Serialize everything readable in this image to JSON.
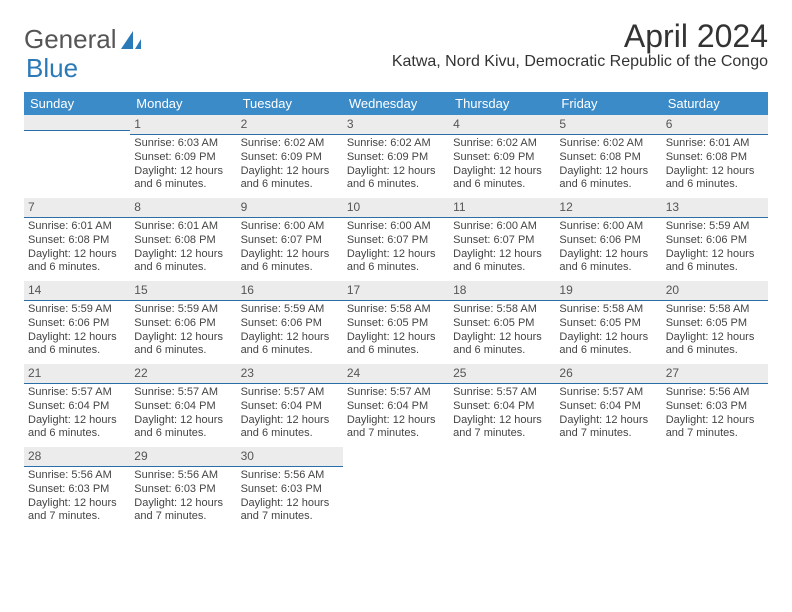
{
  "brand": {
    "part1": "General",
    "part2": "Blue"
  },
  "title": "April 2024",
  "location": "Katwa, Nord Kivu, Democratic Republic of the Congo",
  "headers": [
    "Sunday",
    "Monday",
    "Tuesday",
    "Wednesday",
    "Thursday",
    "Friday",
    "Saturday"
  ],
  "colors": {
    "header_bg": "#3b8bc9",
    "header_fg": "#ffffff",
    "daynum_bg": "#ececec",
    "daynum_border": "#2a6ea8",
    "brand_blue": "#2a7ab8"
  },
  "weeks": [
    [
      {
        "n": "",
        "sr": "",
        "ss": "",
        "dl": ""
      },
      {
        "n": "1",
        "sr": "Sunrise: 6:03 AM",
        "ss": "Sunset: 6:09 PM",
        "dl": "Daylight: 12 hours and 6 minutes."
      },
      {
        "n": "2",
        "sr": "Sunrise: 6:02 AM",
        "ss": "Sunset: 6:09 PM",
        "dl": "Daylight: 12 hours and 6 minutes."
      },
      {
        "n": "3",
        "sr": "Sunrise: 6:02 AM",
        "ss": "Sunset: 6:09 PM",
        "dl": "Daylight: 12 hours and 6 minutes."
      },
      {
        "n": "4",
        "sr": "Sunrise: 6:02 AM",
        "ss": "Sunset: 6:09 PM",
        "dl": "Daylight: 12 hours and 6 minutes."
      },
      {
        "n": "5",
        "sr": "Sunrise: 6:02 AM",
        "ss": "Sunset: 6:08 PM",
        "dl": "Daylight: 12 hours and 6 minutes."
      },
      {
        "n": "6",
        "sr": "Sunrise: 6:01 AM",
        "ss": "Sunset: 6:08 PM",
        "dl": "Daylight: 12 hours and 6 minutes."
      }
    ],
    [
      {
        "n": "7",
        "sr": "Sunrise: 6:01 AM",
        "ss": "Sunset: 6:08 PM",
        "dl": "Daylight: 12 hours and 6 minutes."
      },
      {
        "n": "8",
        "sr": "Sunrise: 6:01 AM",
        "ss": "Sunset: 6:08 PM",
        "dl": "Daylight: 12 hours and 6 minutes."
      },
      {
        "n": "9",
        "sr": "Sunrise: 6:00 AM",
        "ss": "Sunset: 6:07 PM",
        "dl": "Daylight: 12 hours and 6 minutes."
      },
      {
        "n": "10",
        "sr": "Sunrise: 6:00 AM",
        "ss": "Sunset: 6:07 PM",
        "dl": "Daylight: 12 hours and 6 minutes."
      },
      {
        "n": "11",
        "sr": "Sunrise: 6:00 AM",
        "ss": "Sunset: 6:07 PM",
        "dl": "Daylight: 12 hours and 6 minutes."
      },
      {
        "n": "12",
        "sr": "Sunrise: 6:00 AM",
        "ss": "Sunset: 6:06 PM",
        "dl": "Daylight: 12 hours and 6 minutes."
      },
      {
        "n": "13",
        "sr": "Sunrise: 5:59 AM",
        "ss": "Sunset: 6:06 PM",
        "dl": "Daylight: 12 hours and 6 minutes."
      }
    ],
    [
      {
        "n": "14",
        "sr": "Sunrise: 5:59 AM",
        "ss": "Sunset: 6:06 PM",
        "dl": "Daylight: 12 hours and 6 minutes."
      },
      {
        "n": "15",
        "sr": "Sunrise: 5:59 AM",
        "ss": "Sunset: 6:06 PM",
        "dl": "Daylight: 12 hours and 6 minutes."
      },
      {
        "n": "16",
        "sr": "Sunrise: 5:59 AM",
        "ss": "Sunset: 6:06 PM",
        "dl": "Daylight: 12 hours and 6 minutes."
      },
      {
        "n": "17",
        "sr": "Sunrise: 5:58 AM",
        "ss": "Sunset: 6:05 PM",
        "dl": "Daylight: 12 hours and 6 minutes."
      },
      {
        "n": "18",
        "sr": "Sunrise: 5:58 AM",
        "ss": "Sunset: 6:05 PM",
        "dl": "Daylight: 12 hours and 6 minutes."
      },
      {
        "n": "19",
        "sr": "Sunrise: 5:58 AM",
        "ss": "Sunset: 6:05 PM",
        "dl": "Daylight: 12 hours and 6 minutes."
      },
      {
        "n": "20",
        "sr": "Sunrise: 5:58 AM",
        "ss": "Sunset: 6:05 PM",
        "dl": "Daylight: 12 hours and 6 minutes."
      }
    ],
    [
      {
        "n": "21",
        "sr": "Sunrise: 5:57 AM",
        "ss": "Sunset: 6:04 PM",
        "dl": "Daylight: 12 hours and 6 minutes."
      },
      {
        "n": "22",
        "sr": "Sunrise: 5:57 AM",
        "ss": "Sunset: 6:04 PM",
        "dl": "Daylight: 12 hours and 6 minutes."
      },
      {
        "n": "23",
        "sr": "Sunrise: 5:57 AM",
        "ss": "Sunset: 6:04 PM",
        "dl": "Daylight: 12 hours and 6 minutes."
      },
      {
        "n": "24",
        "sr": "Sunrise: 5:57 AM",
        "ss": "Sunset: 6:04 PM",
        "dl": "Daylight: 12 hours and 7 minutes."
      },
      {
        "n": "25",
        "sr": "Sunrise: 5:57 AM",
        "ss": "Sunset: 6:04 PM",
        "dl": "Daylight: 12 hours and 7 minutes."
      },
      {
        "n": "26",
        "sr": "Sunrise: 5:57 AM",
        "ss": "Sunset: 6:04 PM",
        "dl": "Daylight: 12 hours and 7 minutes."
      },
      {
        "n": "27",
        "sr": "Sunrise: 5:56 AM",
        "ss": "Sunset: 6:03 PM",
        "dl": "Daylight: 12 hours and 7 minutes."
      }
    ],
    [
      {
        "n": "28",
        "sr": "Sunrise: 5:56 AM",
        "ss": "Sunset: 6:03 PM",
        "dl": "Daylight: 12 hours and 7 minutes."
      },
      {
        "n": "29",
        "sr": "Sunrise: 5:56 AM",
        "ss": "Sunset: 6:03 PM",
        "dl": "Daylight: 12 hours and 7 minutes."
      },
      {
        "n": "30",
        "sr": "Sunrise: 5:56 AM",
        "ss": "Sunset: 6:03 PM",
        "dl": "Daylight: 12 hours and 7 minutes."
      },
      {
        "n": "",
        "sr": "",
        "ss": "",
        "dl": ""
      },
      {
        "n": "",
        "sr": "",
        "ss": "",
        "dl": ""
      },
      {
        "n": "",
        "sr": "",
        "ss": "",
        "dl": ""
      },
      {
        "n": "",
        "sr": "",
        "ss": "",
        "dl": ""
      }
    ]
  ]
}
